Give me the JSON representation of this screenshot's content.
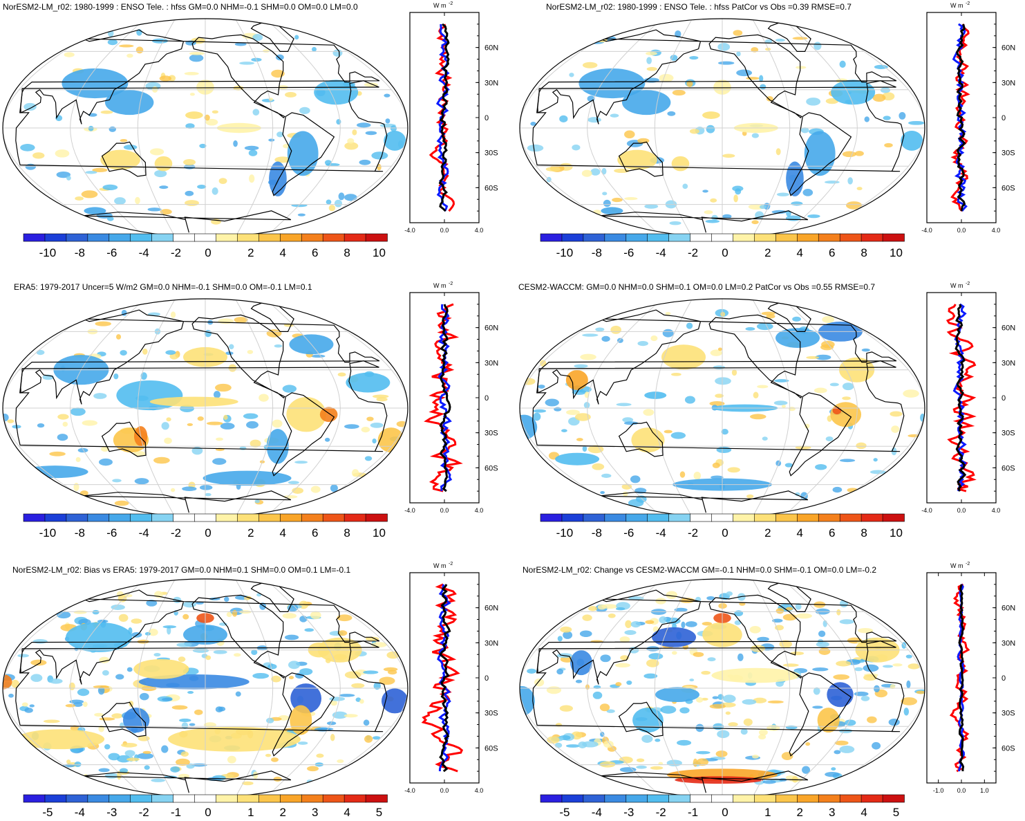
{
  "palette": [
    "#2a1fe0",
    "#1b3fd8",
    "#2e62d6",
    "#3a8ae2",
    "#46a8ea",
    "#52bdef",
    "#86d3f2",
    "#ffffff",
    "#ffffff",
    "#fff3a8",
    "#fde178",
    "#fcc54a",
    "#f9a528",
    "#f4801c",
    "#ee5518",
    "#e42a16",
    "#cc1010"
  ],
  "line_colors": {
    "red": "#ff0000",
    "blue": "#0a1aff",
    "black": "#000000"
  },
  "zonal_axis": {
    "unit": "W m",
    "unit_sup": "-2",
    "lat_ticks": [
      "60N",
      "30N",
      "0",
      "30S",
      "60S"
    ]
  },
  "panels": [
    {
      "title": "NorESM2-LM_r02: 1980-1999 : ENSO Tele. : hfss GM=0.0 NHM=-0.1 SHM=0.0 OM=0.0 LM=0.0",
      "colorbar_labels": [
        "-10",
        "-8",
        "-6",
        "-4",
        "-2",
        "0",
        "2",
        "4",
        "6",
        "8",
        "10"
      ],
      "zonal_x_ticks": [
        "-4.0",
        "0.0",
        "4.0"
      ],
      "zonal_range": [
        -4,
        4
      ]
    },
    {
      "title": "NorESM2-LM_r02: 1980-1999 : ENSO Tele. : hfss PatCor vs Obs =0.39 RMSE=0.7",
      "colorbar_labels": [
        "-10",
        "-8",
        "-6",
        "-4",
        "-2",
        "0",
        "2",
        "4",
        "6",
        "8",
        "10"
      ],
      "zonal_x_ticks": [
        "-4.0",
        "0.0",
        "4.0"
      ],
      "zonal_range": [
        -4,
        4
      ]
    },
    {
      "title": "ERA5: 1979-2017 Uncer=5 W/m2 GM=0.0 NHM=-0.1 SHM=0.0 OM=-0.1 LM=0.1",
      "colorbar_labels": [
        "-10",
        "-8",
        "-6",
        "-4",
        "-2",
        "0",
        "2",
        "4",
        "6",
        "8",
        "10"
      ],
      "zonal_x_ticks": [
        "-4.0",
        "0.0",
        "4.0"
      ],
      "zonal_range": [
        -4,
        4
      ]
    },
    {
      "title": "CESM2-WACCM: GM=0.0 NHM=0.0 SHM=0.1 OM=0.0 LM=0.2 PatCor vs Obs =0.55 RMSE=0.7",
      "colorbar_labels": [
        "-10",
        "-8",
        "-6",
        "-4",
        "-2",
        "0",
        "2",
        "4",
        "6",
        "8",
        "10"
      ],
      "zonal_x_ticks": [
        "-4.0",
        "0.0",
        "4.0"
      ],
      "zonal_range": [
        -4,
        4
      ]
    },
    {
      "title": "NorESM2-LM_r02: Bias vs ERA5: 1979-2017 GM=0.0 NHM=0.1 SHM=0.0 OM=0.1 LM=-0.1",
      "colorbar_labels": [
        "-5",
        "-4",
        "-3",
        "-2",
        "-1",
        "0",
        "1",
        "2",
        "3",
        "4",
        "5"
      ],
      "zonal_x_ticks": [
        "-4.0",
        "0.0",
        "4.0"
      ],
      "zonal_range": [
        -4,
        4
      ]
    },
    {
      "title": "NorESM2-LM_r02: Change vs CESM2-WACCM GM=-0.1 NHM=0.0 SHM=-0.1 OM=0.0 LM=-0.2",
      "colorbar_labels": [
        "-5",
        "-4",
        "-3",
        "-2",
        "-1",
        "0",
        "1",
        "2",
        "3",
        "4",
        "5"
      ],
      "zonal_x_ticks": [
        "-1.0",
        "0.0",
        "1.0"
      ],
      "zonal_range": [
        -1.5,
        1.5
      ]
    }
  ]
}
